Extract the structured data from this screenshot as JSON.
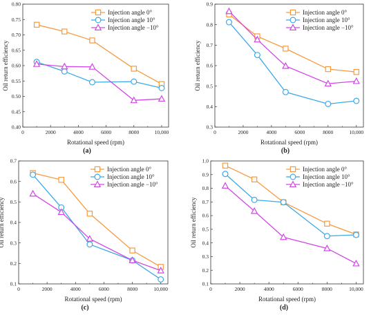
{
  "colors": {
    "s0": "#F79A3E",
    "s1": "#3BA8E8",
    "s2": "#D146E6"
  },
  "chart_data": [
    {
      "type": "line",
      "panel_label": "(a)",
      "xlabel": "Rotational speed (rpm)",
      "ylabel": "Oil return efficiency",
      "xlim": [
        0,
        10500
      ],
      "ylim": [
        0.4,
        0.8
      ],
      "xticks": [
        0,
        2000,
        4000,
        6000,
        8000,
        10000
      ],
      "xtick_labels": [
        "0",
        "2000",
        "4000",
        "6000",
        "8000",
        "10,000"
      ],
      "yticks": [
        0.4,
        0.45,
        0.5,
        0.55,
        0.6,
        0.65,
        0.7,
        0.75,
        0.8
      ],
      "ytick_labels": [
        "0.40",
        "0.45",
        "0.50",
        "0.55",
        "0.60",
        "0.65",
        "0.70",
        "0.75",
        "0.80"
      ],
      "legend_position": "top-right",
      "x": [
        1000,
        3000,
        5000,
        8000,
        10000
      ],
      "series": [
        {
          "name": "Injection angle 0°",
          "marker": "square",
          "values": [
            0.733,
            0.711,
            0.682,
            0.59,
            0.54
          ]
        },
        {
          "name": "Injection angle 10°",
          "marker": "circle",
          "values": [
            0.612,
            0.581,
            0.546,
            0.548,
            0.527
          ]
        },
        {
          "name": "Injection angle −10°",
          "marker": "triangle",
          "values": [
            0.605,
            0.597,
            0.596,
            0.487,
            0.492
          ]
        }
      ]
    },
    {
      "type": "line",
      "panel_label": "(b)",
      "xlabel": "Rotational speed (rpm)",
      "ylabel": "Oil return efficiency",
      "xlim": [
        0,
        10500
      ],
      "ylim": [
        0.3,
        0.9
      ],
      "xticks": [
        0,
        2000,
        4000,
        6000,
        8000,
        10000
      ],
      "xtick_labels": [
        "0",
        "2000",
        "4000",
        "6000",
        "8000",
        "10,000"
      ],
      "yticks": [
        0.3,
        0.4,
        0.5,
        0.6,
        0.7,
        0.8,
        0.9
      ],
      "ytick_labels": [
        "0.3",
        "0.4",
        "0.5",
        "0.6",
        "0.7",
        "0.8",
        "0.9"
      ],
      "legend_position": "top-right",
      "x": [
        1000,
        3000,
        5000,
        8000,
        10000
      ],
      "series": [
        {
          "name": "Injection angle 0°",
          "marker": "square",
          "values": [
            0.85,
            0.743,
            0.683,
            0.583,
            0.569
          ]
        },
        {
          "name": "Injection angle 10°",
          "marker": "circle",
          "values": [
            0.812,
            0.652,
            0.471,
            0.413,
            0.428
          ]
        },
        {
          "name": "Injection angle −10°",
          "marker": "triangle",
          "values": [
            0.865,
            0.727,
            0.598,
            0.512,
            0.524
          ]
        }
      ]
    },
    {
      "type": "line",
      "panel_label": "(c)",
      "xlabel": "Rotational speed (rpm)",
      "ylabel": "Oil return efficiency",
      "xlim": [
        0,
        10500
      ],
      "ylim": [
        0.1,
        0.7
      ],
      "xticks": [
        0,
        2000,
        4000,
        6000,
        8000,
        10000
      ],
      "xtick_labels": [
        "0",
        "2000",
        "4000",
        "6000",
        "8000",
        "10,000"
      ],
      "yticks": [
        0.1,
        0.2,
        0.3,
        0.4,
        0.5,
        0.6,
        0.7
      ],
      "ytick_labels": [
        "0.1",
        "0.2",
        "0.3",
        "0.4",
        "0.5",
        "0.6",
        "0.7"
      ],
      "legend_position": "top-right",
      "x": [
        1000,
        3000,
        5000,
        8000,
        10000
      ],
      "series": [
        {
          "name": "Injection angle 0°",
          "marker": "square",
          "values": [
            0.641,
            0.608,
            0.443,
            0.263,
            0.183
          ]
        },
        {
          "name": "Injection angle 10°",
          "marker": "circle",
          "values": [
            0.633,
            0.473,
            0.293,
            0.215,
            0.122
          ]
        },
        {
          "name": "Injection angle −10°",
          "marker": "triangle",
          "values": [
            0.54,
            0.45,
            0.32,
            0.215,
            0.165
          ]
        }
      ]
    },
    {
      "type": "line",
      "panel_label": "(d)",
      "xlabel": "Rotational speed (rpm)",
      "ylabel": "Oil return efficiency",
      "xlim": [
        0,
        10500
      ],
      "ylim": [
        0.1,
        1.0
      ],
      "xticks": [
        0,
        2000,
        4000,
        6000,
        8000,
        10000
      ],
      "xtick_labels": [
        "0",
        "2000",
        "4000",
        "6000",
        "8000",
        "10,000"
      ],
      "yticks": [
        0.1,
        0.2,
        0.3,
        0.4,
        0.5,
        0.6,
        0.7,
        0.8,
        0.9,
        1.0
      ],
      "ytick_labels": [
        "0.1",
        "0.2",
        "0.3",
        "0.4",
        "0.5",
        "0.6",
        "0.7",
        "0.8",
        "0.9",
        "1.0"
      ],
      "legend_position": "top-right",
      "x": [
        1000,
        3000,
        5000,
        8000,
        10000
      ],
      "series": [
        {
          "name": "Injection angle 0°",
          "marker": "square",
          "values": [
            0.966,
            0.865,
            0.698,
            0.541,
            0.462
          ]
        },
        {
          "name": "Injection angle 10°",
          "marker": "circle",
          "values": [
            0.905,
            0.715,
            0.698,
            0.45,
            0.459
          ]
        },
        {
          "name": "Injection angle −10°",
          "marker": "triangle",
          "values": [
            0.818,
            0.633,
            0.442,
            0.36,
            0.249
          ]
        }
      ]
    }
  ]
}
